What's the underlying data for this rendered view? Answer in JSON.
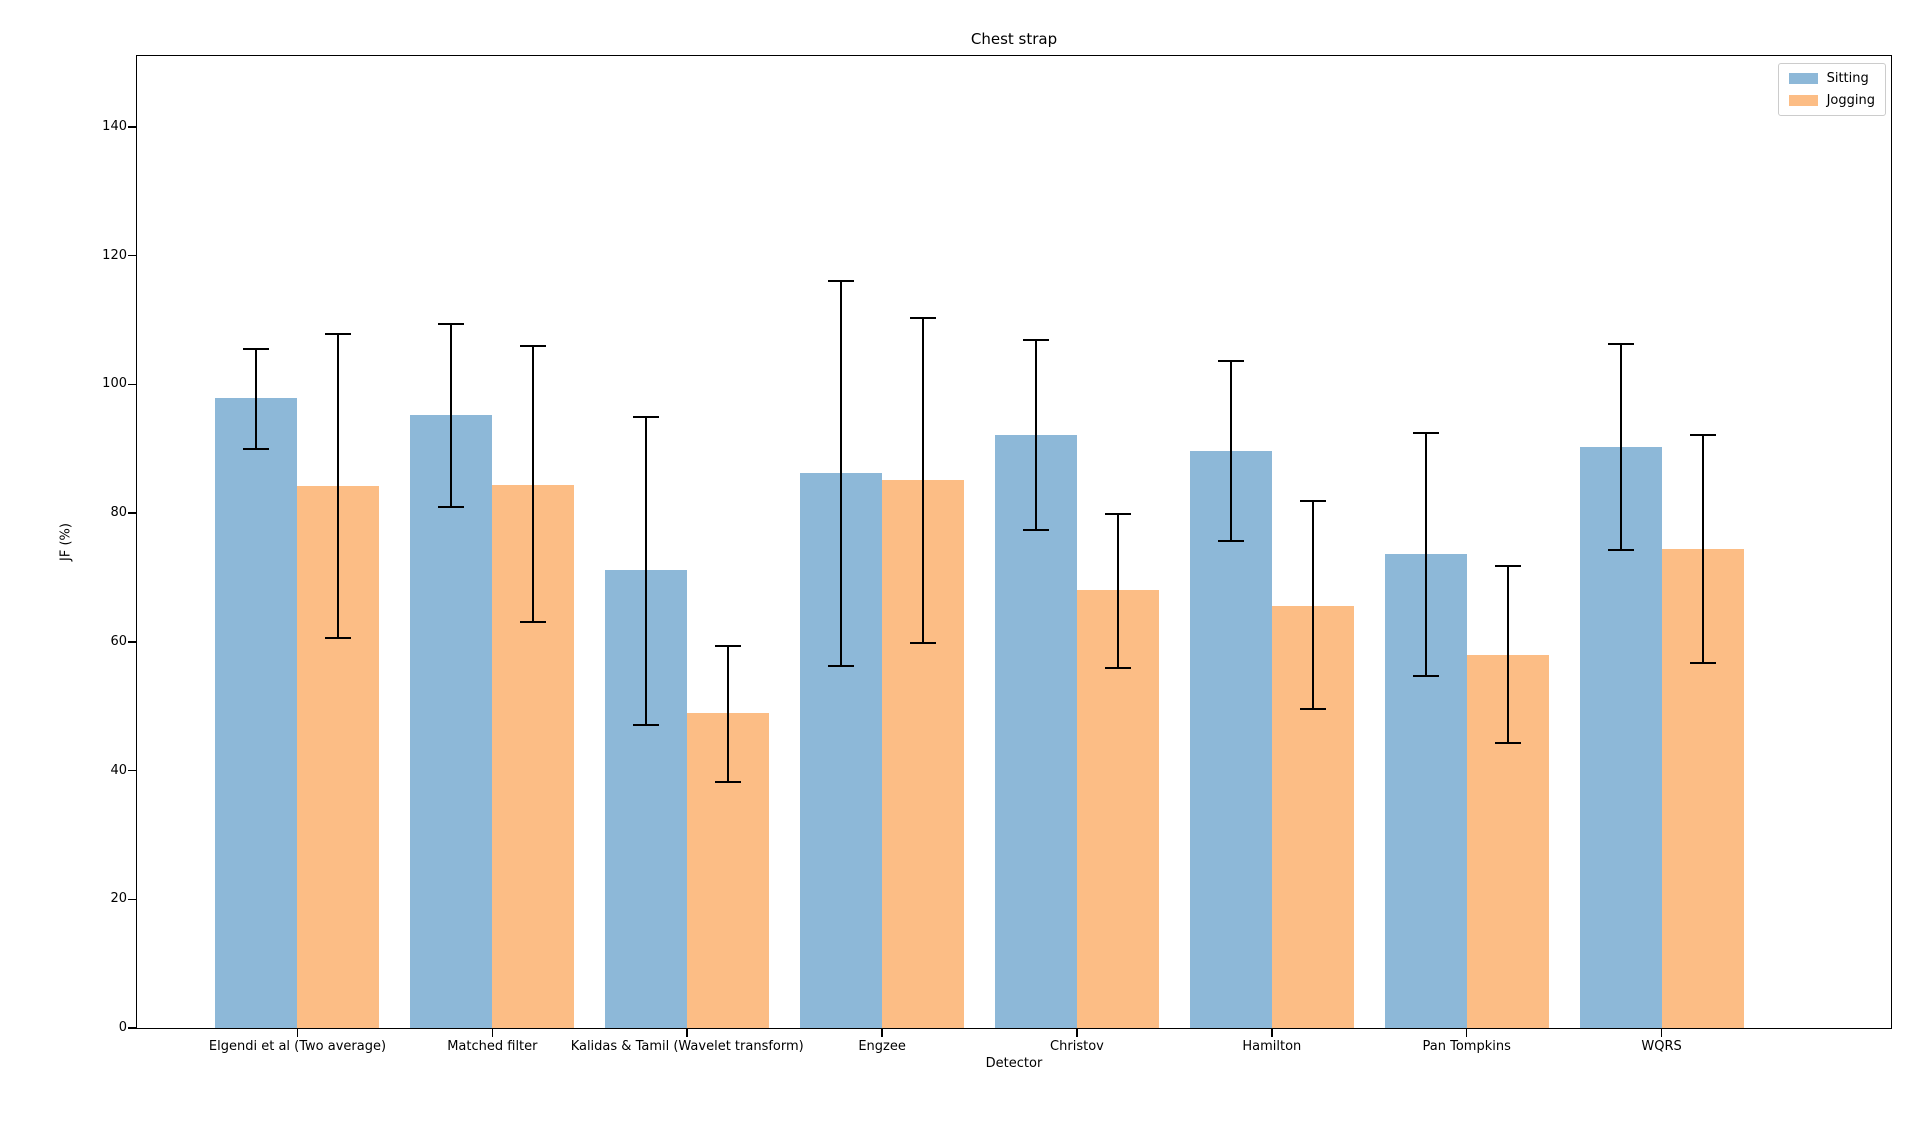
{
  "chart_data": {
    "type": "bar",
    "title": "Chest strap",
    "xlabel": "Detector",
    "ylabel": "JF (%)",
    "ylim": [
      0,
      151
    ],
    "yticks": [
      0,
      20,
      40,
      60,
      80,
      100,
      120,
      140
    ],
    "grid": false,
    "legend": {
      "position": "upper right",
      "entries": [
        "Sitting",
        "Jogging"
      ]
    },
    "error_bar_color": "#000000",
    "categories": [
      "Elgendi et al (Two average)",
      "Matched filter",
      "Kalidas & Tamil (Wavelet transform)",
      "Engzee",
      "Christov",
      "Hamilton",
      "Pan Tompkins",
      "WQRS"
    ],
    "series": [
      {
        "name": "Sitting",
        "color": "#8db8d8",
        "values": [
          97.8,
          95.2,
          71.2,
          86.2,
          92.1,
          89.6,
          73.6,
          90.2
        ],
        "error_upper": [
          105.5,
          109.4,
          94.9,
          116.1,
          106.9,
          103.6,
          92.5,
          106.3
        ],
        "error_lower": [
          90.0,
          81.0,
          47.1,
          56.2,
          77.4,
          75.7,
          54.7,
          74.3
        ]
      },
      {
        "name": "Jogging",
        "color": "#fcbd85",
        "values": [
          84.2,
          84.4,
          48.9,
          85.2,
          68.0,
          65.6,
          58.0,
          74.4
        ],
        "error_upper": [
          107.8,
          105.9,
          59.4,
          110.3,
          79.8,
          81.9,
          71.7,
          92.2
        ],
        "error_lower": [
          60.6,
          63.0,
          38.2,
          59.8,
          56.0,
          49.5,
          44.3,
          56.7
        ]
      }
    ]
  }
}
